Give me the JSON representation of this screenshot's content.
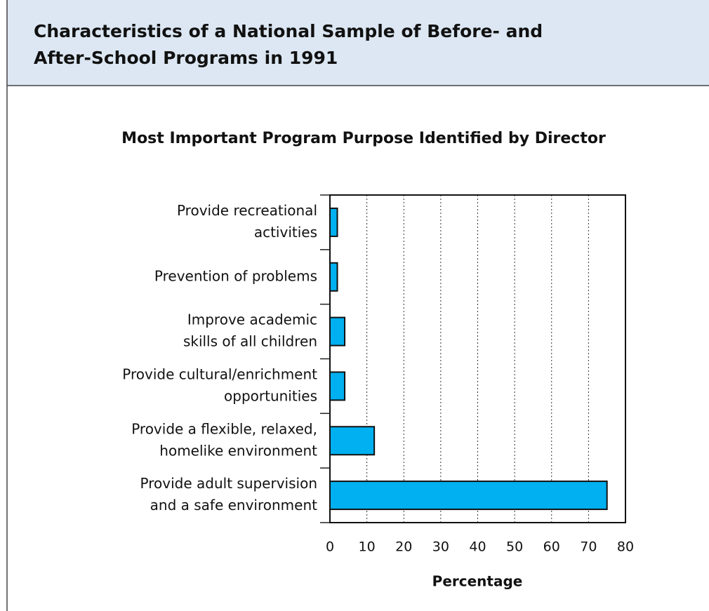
{
  "header": {
    "title": [
      "Characteristics of a National Sample of Before- and",
      "After-School Programs in 1991"
    ]
  },
  "chart_data": {
    "type": "bar",
    "orientation": "horizontal",
    "title": "Most Important Program Purpose Identified by Director",
    "x_label": "Percentage",
    "categories": [
      [
        "Provide recreational",
        "activities"
      ],
      [
        "Prevention of problems"
      ],
      [
        "Improve academic",
        "skills of all children"
      ],
      [
        "Provide cultural/enrichment",
        "opportunities"
      ],
      [
        "Provide a flexible, relaxed,",
        "homelike environment"
      ],
      [
        "Provide adult supervision",
        "and a safe environment"
      ]
    ],
    "values": [
      2,
      2,
      4,
      4,
      12,
      75
    ],
    "color": "#00b0f0",
    "xlim": [
      0,
      80
    ],
    "xticks": [
      0,
      10,
      20,
      30,
      40,
      50,
      60,
      70,
      80
    ],
    "grid": true
  }
}
